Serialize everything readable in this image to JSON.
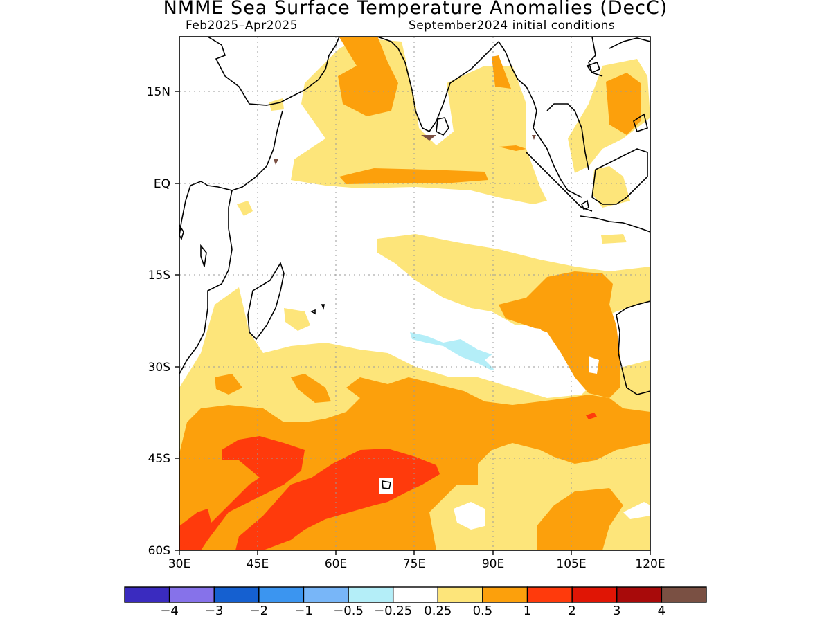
{
  "header": {
    "title": "NMME Sea Surface Temperature Anomalies (DecC)",
    "period": "Feb2025–Apr2025",
    "initial_conditions": "September2024 initial conditions"
  },
  "map": {
    "lat_labels": [
      "15N",
      "EQ",
      "15S",
      "30S",
      "45S",
      "60S"
    ],
    "lon_labels": [
      "30E",
      "45E",
      "60E",
      "75E",
      "90E",
      "105E",
      "120E"
    ],
    "lat_range": [
      -60,
      24
    ],
    "lon_range": [
      30,
      120
    ],
    "grid": "dotted"
  },
  "legend": {
    "colors": [
      "#3a2bbf",
      "#8672ea",
      "#1560d0",
      "#3b95f0",
      "#78b6f8",
      "#b4eef8",
      "#ffffff",
      "#fde57a",
      "#fca00c",
      "#ff3a0c",
      "#e01505",
      "#a80a0a",
      "#7a5043"
    ],
    "labels": [
      "−4",
      "−3",
      "−2",
      "−1",
      "−0.5",
      "−0.25",
      "0.25",
      "0.5",
      "1",
      "2",
      "3",
      "4"
    ]
  }
}
